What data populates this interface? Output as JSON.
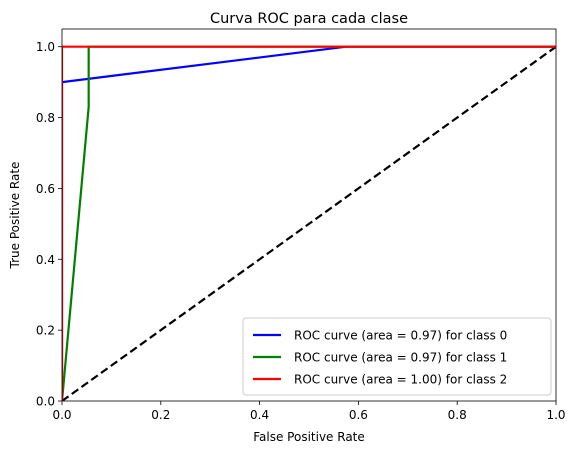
{
  "chart_data": {
    "type": "line",
    "title": "Curva ROC para cada clase",
    "xlabel": "False Positive Rate",
    "ylabel": "True Positive Rate",
    "xlim": [
      0.0,
      1.0
    ],
    "ylim": [
      0.0,
      1.05
    ],
    "xticks": [
      "0.0",
      "0.2",
      "0.4",
      "0.6",
      "0.8",
      "1.0"
    ],
    "yticks": [
      "0.0",
      "0.2",
      "0.4",
      "0.6",
      "0.8",
      "1.0"
    ],
    "grid": false,
    "legend_position": "lower right",
    "series": [
      {
        "name": "ROC curve (area = 0.97) for class 0",
        "color": "#0000ff",
        "x": [
          0.0,
          0.0,
          0.575,
          1.0
        ],
        "y": [
          0.0,
          0.9,
          1.0,
          1.0
        ]
      },
      {
        "name": "ROC curve (area = 0.97) for class 1",
        "color": "#008000",
        "x": [
          0.0,
          0.054,
          0.054,
          1.0
        ],
        "y": [
          0.0,
          0.83,
          1.0,
          1.0
        ]
      },
      {
        "name": "ROC curve (area = 1.00) for class 2",
        "color": "#ff0000",
        "x": [
          0.0,
          0.0,
          1.0
        ],
        "y": [
          0.0,
          1.0,
          1.0
        ]
      },
      {
        "color": "#000000",
        "dashed": true,
        "x": [
          0.0,
          1.0
        ],
        "y": [
          0.0,
          1.0
        ]
      }
    ]
  }
}
